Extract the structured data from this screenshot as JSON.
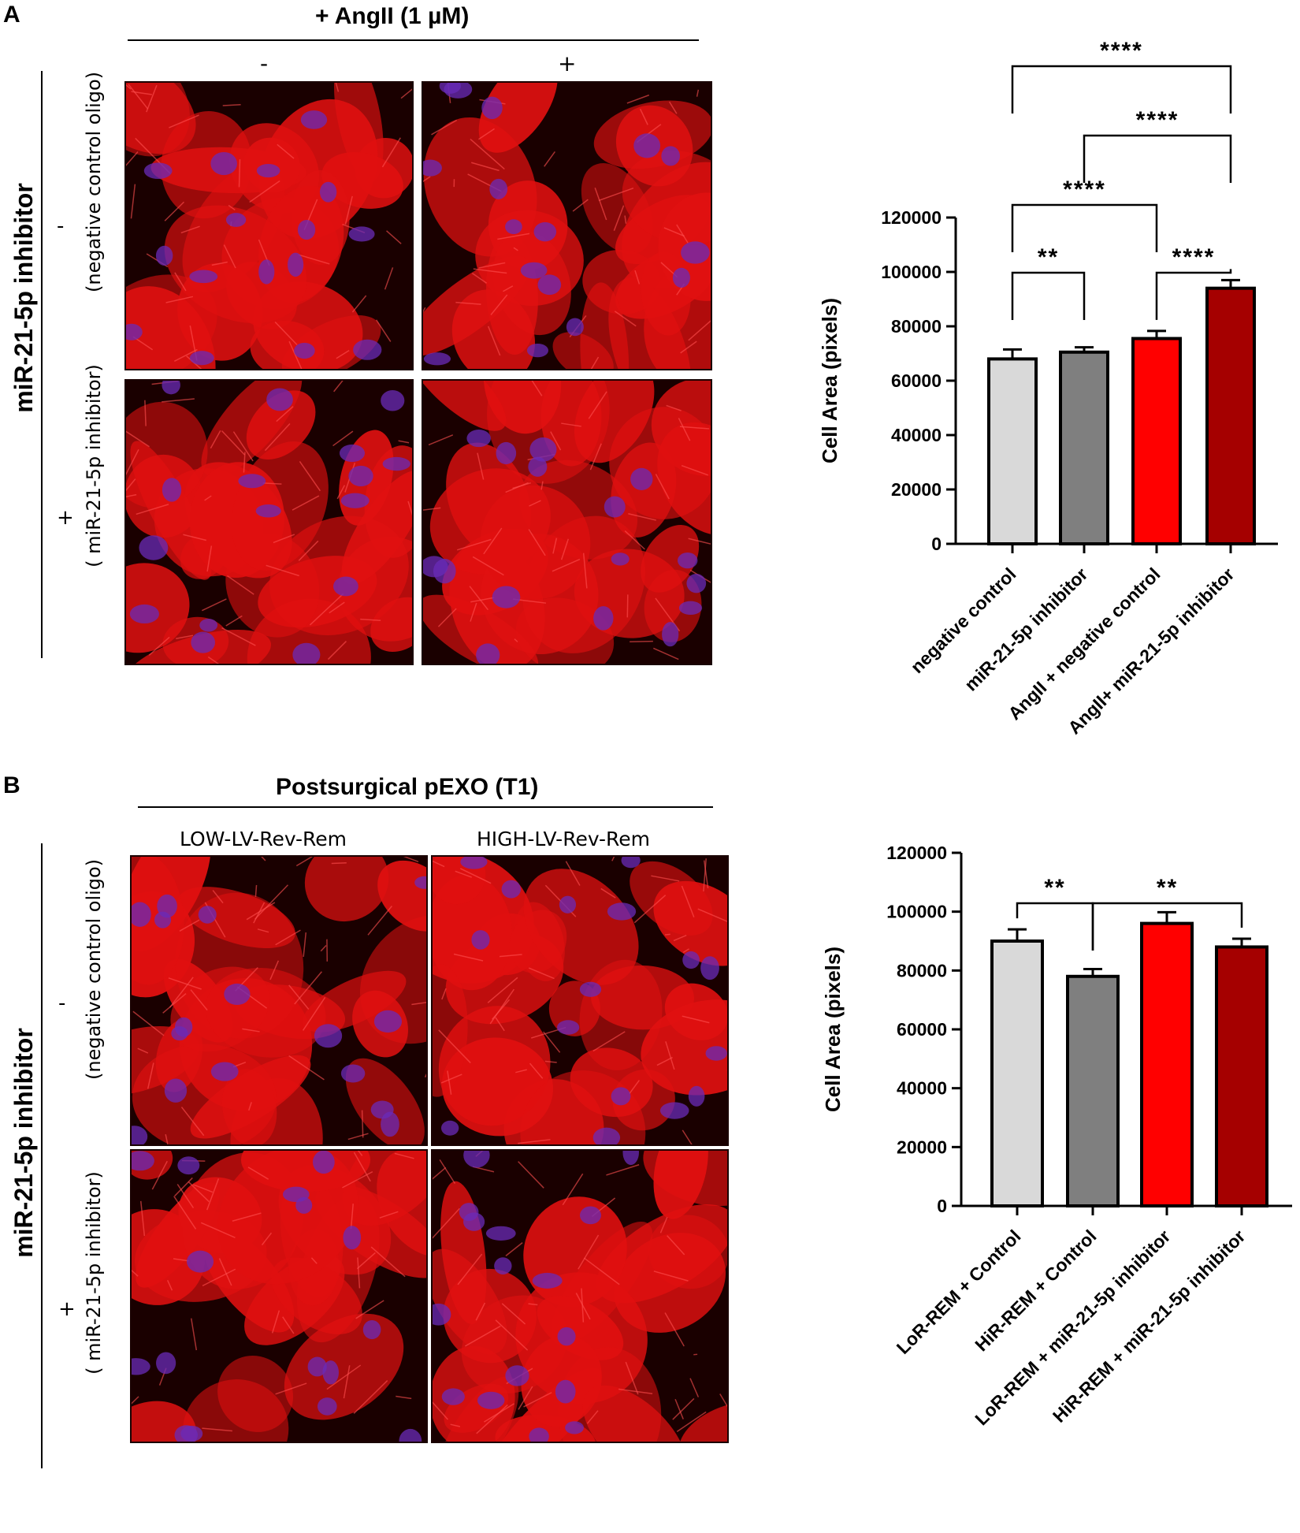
{
  "panels": [
    {
      "letter": "A",
      "treatment_title": "+ AngII (1 µM)",
      "col_labels": [
        "-",
        "+"
      ],
      "row_group_label": "miR-21-5p   inhibitor",
      "row_labels": [
        {
          "sign": "-",
          "desc": "(negative control oligo)"
        },
        {
          "sign": "+",
          "desc": "( miR-21-5p inhibitor)"
        }
      ]
    },
    {
      "letter": "B",
      "treatment_title": "Postsurgical  pEXO (T1)",
      "col_labels": [
        "LOW-LV-Rev-Rem",
        "HIGH-LV-Rev-Rem"
      ],
      "row_group_label": "miR-21-5p   inhibitor",
      "row_labels": [
        {
          "sign": "-",
          "desc": "(negative control oligo)"
        },
        {
          "sign": "+",
          "desc": "( miR-21-5p inhibitor)"
        }
      ]
    }
  ],
  "colors": {
    "light_gray": "#d9d9d9",
    "dark_gray": "#7f7f7f",
    "red": "#ff0000",
    "dark_red": "#a50000",
    "micro_red": "#e01010",
    "micro_nucleus": "#6a2bb8"
  },
  "chart_data": [
    {
      "type": "bar",
      "categories": [
        "negative control",
        "miR-21-5p inhibitor",
        "AngII + negative control",
        "AngII+ miR-21-5p inhibitor"
      ],
      "values": [
        68000,
        70500,
        75500,
        94000
      ],
      "errors": [
        3500,
        1800,
        2800,
        3000
      ],
      "bar_colors": [
        "#d9d9d9",
        "#7f7f7f",
        "#ff0000",
        "#a50000"
      ],
      "ylabel": "Cell Area (pixels)",
      "ylim": [
        0,
        120000
      ],
      "yticks": [
        0,
        20000,
        40000,
        60000,
        80000,
        100000,
        120000
      ],
      "significance": [
        {
          "from": 0,
          "to": 1,
          "label": "**"
        },
        {
          "from": 2,
          "to": 3,
          "label": "****"
        },
        {
          "from": 0,
          "to": 2,
          "label": "****"
        },
        {
          "from": 1,
          "to": 3,
          "label": "****"
        },
        {
          "from": 0,
          "to": 3,
          "label": "****"
        }
      ]
    },
    {
      "type": "bar",
      "categories": [
        "LoR-REM + Control",
        "HiR-REM + Control",
        "LoR-REM + miR-21-5p inhibitor",
        "HiR-REM + miR-21-5p inhibitor"
      ],
      "values": [
        90000,
        78000,
        96000,
        88000
      ],
      "errors": [
        4000,
        2500,
        3800,
        2800
      ],
      "bar_colors": [
        "#d9d9d9",
        "#7f7f7f",
        "#ff0000",
        "#a50000"
      ],
      "ylabel": "Cell Area (pixels)",
      "ylim": [
        0,
        120000
      ],
      "yticks": [
        0,
        20000,
        40000,
        60000,
        80000,
        100000,
        120000
      ],
      "significance": [
        {
          "from": 0,
          "to": 1,
          "label": "**"
        },
        {
          "from": 1,
          "to": 3,
          "label": "**"
        }
      ]
    }
  ]
}
